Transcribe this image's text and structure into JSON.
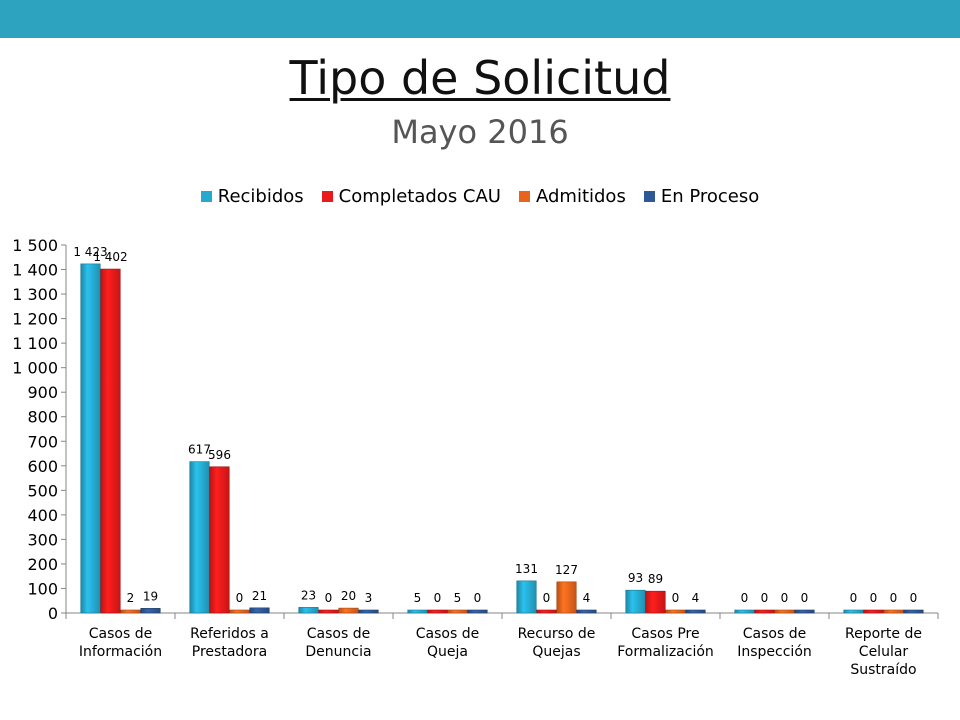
{
  "header": {
    "title": "Tipo de Solicitud",
    "subtitle": "Mayo 2016"
  },
  "chart_data": {
    "type": "bar",
    "categories": [
      [
        "Casos de",
        "Información"
      ],
      [
        "Referidos a",
        "Prestadora"
      ],
      [
        "Casos de",
        "Denuncia"
      ],
      [
        "Casos de",
        "Queja"
      ],
      [
        "Recurso de",
        "Quejas"
      ],
      [
        "Casos Pre",
        "Formalización"
      ],
      [
        "Casos de",
        "Inspección"
      ],
      [
        "Reporte de",
        "Celular",
        "Sustraído"
      ]
    ],
    "series": [
      {
        "name": "Recibidos",
        "color": "#25a9cf",
        "values": [
          1423,
          617,
          23,
          5,
          131,
          93,
          0,
          0
        ]
      },
      {
        "name": "Completados CAU",
        "color": "#e81a1a",
        "values": [
          1402,
          596,
          0,
          0,
          0,
          89,
          0,
          0
        ]
      },
      {
        "name": "Admitidos",
        "color": "#e8641c",
        "values": [
          2,
          0,
          20,
          5,
          127,
          0,
          0,
          0
        ]
      },
      {
        "name": "En Proceso",
        "color": "#2f5897",
        "values": [
          19,
          21,
          3,
          0,
          4,
          4,
          0,
          0
        ]
      }
    ],
    "value_labels": [
      [
        "1 423",
        "1 402",
        "2",
        "19"
      ],
      [
        "617",
        "596",
        "0",
        "21"
      ],
      [
        "23",
        "0",
        "20",
        "3"
      ],
      [
        "5",
        "0",
        "5",
        "0"
      ],
      [
        "131",
        "0",
        "127",
        "4"
      ],
      [
        "93",
        "89",
        "0",
        "4"
      ],
      [
        "0",
        "0",
        "0",
        "0"
      ],
      [
        "0",
        "0",
        "0",
        "0"
      ]
    ],
    "ylim": [
      0,
      1500
    ],
    "yticks": [
      0,
      100,
      200,
      300,
      400,
      500,
      600,
      700,
      800,
      900,
      1000,
      1100,
      1200,
      1300,
      1400,
      1500
    ],
    "ytick_labels": [
      "0",
      "100",
      "200",
      "300",
      "400",
      "500",
      "600",
      "700",
      "800",
      "900",
      "1 000",
      "1 100",
      "1 200",
      "1 300",
      "1 400",
      "1 500"
    ],
    "legend_position": "top",
    "grid": false
  }
}
